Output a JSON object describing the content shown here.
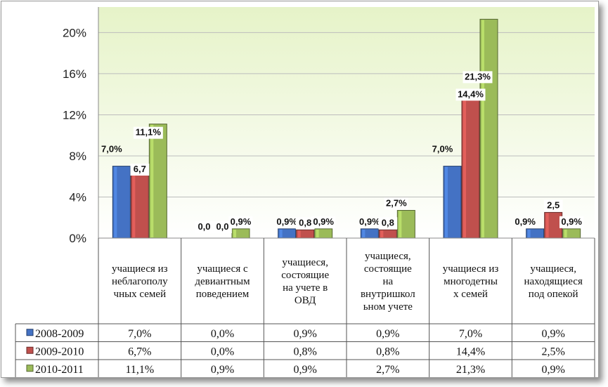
{
  "chart_data": {
    "type": "bar",
    "categories": [
      [
        "учащиеся из",
        "неблагополу",
        "чных семей"
      ],
      [
        "учащиеся с",
        "девиантным",
        "поведением"
      ],
      [
        "учащиеся,",
        "состоящие",
        "на учете в",
        "ОВД"
      ],
      [
        "учащиеся,",
        "состоящие",
        "на",
        "внутришкол",
        "ьном учете"
      ],
      [
        "учащиеся из",
        "многодетны",
        "х семей"
      ],
      [
        "учащиеся,",
        "находящиеся",
        "под опекой"
      ]
    ],
    "series": [
      {
        "name": "2008-2009",
        "color": "#4472c4",
        "values": [
          7.0,
          0.0,
          0.9,
          0.9,
          7.0,
          0.9
        ],
        "labels": [
          "7,0%",
          "0,0%",
          "0,9%",
          "0,9%",
          "7,0%",
          "0,9%"
        ],
        "bar_labels": [
          "7,0%",
          "0,0",
          "0,9%",
          "0,9%",
          "7,0%",
          "0,9%"
        ]
      },
      {
        "name": "2009-2010",
        "color": "#c0504d",
        "values": [
          6.7,
          0.0,
          0.8,
          0.8,
          14.4,
          2.5
        ],
        "labels": [
          "6,7%",
          "0,0%",
          "0,8%",
          "0,8%",
          "14,4%",
          "2,5%"
        ],
        "bar_labels": [
          "6,7",
          "0,0",
          "0,8",
          "0,8",
          "14,4%",
          "2,5"
        ]
      },
      {
        "name": "2010-2011",
        "color": "#9bbb59",
        "values": [
          11.1,
          0.9,
          0.9,
          2.7,
          21.3,
          0.9
        ],
        "labels": [
          "11,1%",
          "0,9%",
          "0,9%",
          "2,7%",
          "21,3%",
          "0,9%"
        ],
        "bar_labels": [
          "11,1%",
          "0,9%",
          "0,9%",
          "2,7%",
          "21,3%",
          "0,9%"
        ]
      }
    ],
    "yticks": [
      "0%",
      "4%",
      "8%",
      "12%",
      "16%",
      "20%"
    ],
    "ylim": [
      0,
      22
    ],
    "title": "",
    "xlabel": "",
    "ylabel": "",
    "grid": true,
    "legend": "data-table"
  }
}
